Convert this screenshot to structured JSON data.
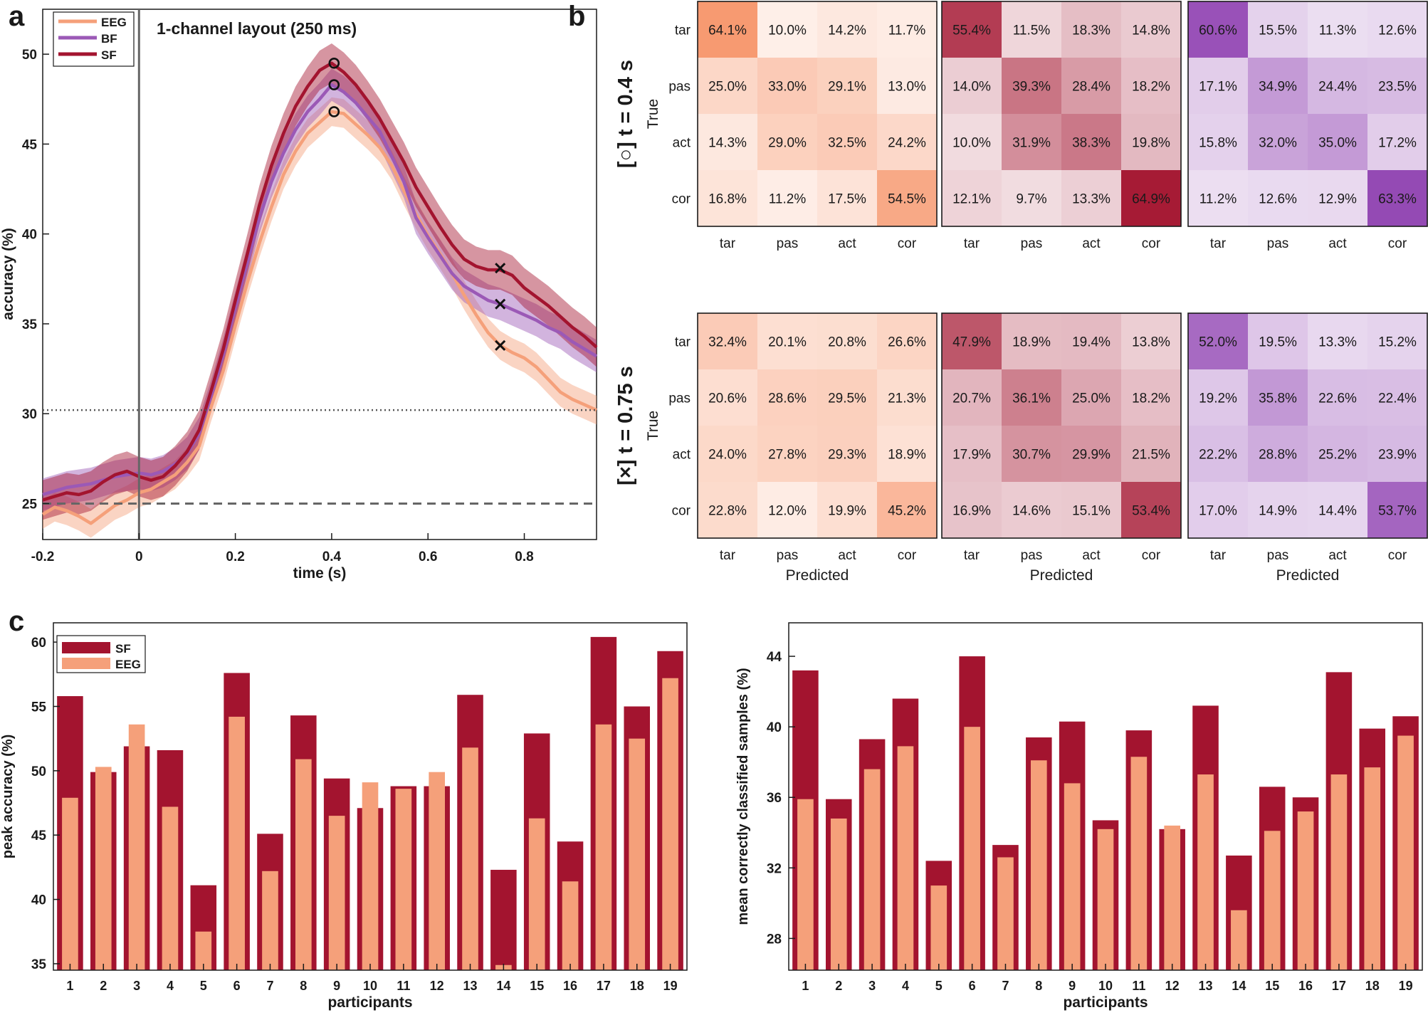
{
  "panel_labels": {
    "a": "a",
    "b": "b",
    "c": "c"
  },
  "colors": {
    "EEG": "#f5a07a",
    "BF": "#9b59b6",
    "SF": "#a3142f",
    "axis": "#1a1a1a"
  },
  "chart_data": [
    {
      "id": "a",
      "type": "line",
      "title": "1-channel layout (250 ms)",
      "xlabel": "time (s)",
      "ylabel": "accuracy (%)",
      "xlim": [
        -0.2,
        0.95
      ],
      "ylim": [
        23,
        52.5
      ],
      "xticks": [
        "-0.2",
        "0",
        "0.2",
        "0.4",
        "0.6",
        "0.8"
      ],
      "yticks": [
        "25",
        "30",
        "35",
        "40",
        "45",
        "50"
      ],
      "x": [
        -0.2,
        -0.175,
        -0.15,
        -0.125,
        -0.1,
        -0.075,
        -0.05,
        -0.025,
        0.0,
        0.025,
        0.05,
        0.075,
        0.1,
        0.125,
        0.15,
        0.175,
        0.2,
        0.225,
        0.25,
        0.275,
        0.3,
        0.325,
        0.35,
        0.375,
        0.4,
        0.425,
        0.45,
        0.475,
        0.5,
        0.525,
        0.55,
        0.575,
        0.6,
        0.625,
        0.65,
        0.675,
        0.7,
        0.725,
        0.75,
        0.775,
        0.8,
        0.825,
        0.85,
        0.875,
        0.9,
        0.925,
        0.95
      ],
      "series": [
        {
          "name": "EEG",
          "values": [
            24.4,
            24.8,
            24.6,
            24.3,
            23.9,
            24.4,
            24.9,
            25.2,
            25.6,
            25.8,
            26.2,
            26.6,
            27.3,
            28.2,
            30.4,
            32.4,
            34.9,
            37.3,
            39.5,
            41.5,
            43.3,
            44.6,
            45.6,
            46.2,
            46.8,
            46.7,
            46.1,
            45.5,
            44.8,
            43.8,
            42.4,
            41.1,
            39.9,
            38.9,
            37.8,
            36.6,
            35.5,
            34.5,
            33.8,
            33.4,
            33.1,
            32.6,
            31.9,
            31.2,
            30.8,
            30.5,
            30.2
          ],
          "band": 0.8
        },
        {
          "name": "BF",
          "values": [
            25.5,
            25.7,
            25.9,
            26.0,
            26.1,
            26.3,
            26.5,
            26.6,
            26.7,
            26.6,
            26.8,
            27.2,
            27.8,
            28.9,
            31.0,
            33.3,
            35.9,
            38.4,
            40.9,
            42.9,
            44.5,
            45.8,
            46.8,
            47.5,
            48.3,
            47.9,
            47.3,
            46.5,
            45.7,
            44.3,
            42.9,
            40.9,
            39.8,
            38.8,
            37.8,
            37.1,
            36.7,
            36.3,
            36.1,
            35.8,
            35.5,
            35.2,
            34.8,
            34.5,
            34.0,
            33.6,
            33.2
          ],
          "band": 0.9
        },
        {
          "name": "SF",
          "values": [
            25.2,
            25.4,
            25.6,
            25.5,
            25.7,
            26.2,
            26.6,
            26.8,
            26.5,
            26.3,
            26.5,
            27.1,
            27.9,
            29.1,
            31.3,
            33.6,
            36.3,
            38.9,
            41.6,
            43.8,
            45.6,
            47.1,
            48.2,
            49.1,
            49.5,
            49.0,
            48.3,
            47.4,
            46.4,
            45.2,
            44.0,
            42.6,
            41.5,
            40.4,
            39.4,
            38.6,
            38.2,
            38.0,
            38.0,
            37.7,
            37.0,
            36.5,
            36.0,
            35.4,
            34.8,
            34.3,
            33.7
          ],
          "band": 1.1
        }
      ],
      "markers": {
        "circle": {
          "x": 0.405,
          "values": [
            49.5,
            48.3,
            46.8
          ]
        },
        "cross": {
          "x": 0.75,
          "values": [
            38.1,
            36.1,
            33.8
          ]
        }
      },
      "reference_lines": {
        "dotted": 30.2,
        "dashed": 25
      },
      "legend": [
        "EEG",
        "BF",
        "SF"
      ],
      "legend_position": "top-left"
    },
    {
      "id": "b",
      "type": "heatmap",
      "row_labels": [
        "tar",
        "pas",
        "act",
        "cor"
      ],
      "col_labels": [
        "tar",
        "pas",
        "act",
        "cor"
      ],
      "ylabel": "True",
      "xlabel": "Predicted",
      "row_titles": [
        "[○] t = 0.4 s",
        "[×] t = 0.75 s"
      ],
      "matrices": [
        {
          "time": "0.4",
          "signal": "EEG",
          "values": [
            [
              "64.1%",
              "10.0%",
              "14.2%",
              "11.7%"
            ],
            [
              "25.0%",
              "33.0%",
              "29.1%",
              "13.0%"
            ],
            [
              "14.3%",
              "29.0%",
              "32.5%",
              "24.2%"
            ],
            [
              "16.8%",
              "11.2%",
              "17.5%",
              "54.5%"
            ]
          ]
        },
        {
          "time": "0.4",
          "signal": "SF",
          "values": [
            [
              "55.4%",
              "11.5%",
              "18.3%",
              "14.8%"
            ],
            [
              "14.0%",
              "39.3%",
              "28.4%",
              "18.2%"
            ],
            [
              "10.0%",
              "31.9%",
              "38.3%",
              "19.8%"
            ],
            [
              "12.1%",
              "9.7%",
              "13.3%",
              "64.9%"
            ]
          ]
        },
        {
          "time": "0.4",
          "signal": "BF",
          "values": [
            [
              "60.6%",
              "15.5%",
              "11.3%",
              "12.6%"
            ],
            [
              "17.1%",
              "34.9%",
              "24.4%",
              "23.5%"
            ],
            [
              "15.8%",
              "32.0%",
              "35.0%",
              "17.2%"
            ],
            [
              "11.2%",
              "12.6%",
              "12.9%",
              "63.3%"
            ]
          ]
        },
        {
          "time": "0.75",
          "signal": "EEG",
          "values": [
            [
              "32.4%",
              "20.1%",
              "20.8%",
              "26.6%"
            ],
            [
              "20.6%",
              "28.6%",
              "29.5%",
              "21.3%"
            ],
            [
              "24.0%",
              "27.8%",
              "29.3%",
              "18.9%"
            ],
            [
              "22.8%",
              "12.0%",
              "19.9%",
              "45.2%"
            ]
          ]
        },
        {
          "time": "0.75",
          "signal": "SF",
          "values": [
            [
              "47.9%",
              "18.9%",
              "19.4%",
              "13.8%"
            ],
            [
              "20.7%",
              "36.1%",
              "25.0%",
              "18.2%"
            ],
            [
              "17.9%",
              "30.7%",
              "29.9%",
              "21.5%"
            ],
            [
              "16.9%",
              "14.6%",
              "15.1%",
              "53.4%"
            ]
          ]
        },
        {
          "time": "0.75",
          "signal": "BF",
          "values": [
            [
              "52.0%",
              "19.5%",
              "13.3%",
              "15.2%"
            ],
            [
              "19.2%",
              "35.8%",
              "22.6%",
              "22.4%"
            ],
            [
              "22.2%",
              "28.8%",
              "25.2%",
              "23.9%"
            ],
            [
              "17.0%",
              "14.9%",
              "14.4%",
              "53.7%"
            ]
          ]
        }
      ]
    },
    {
      "id": "c-left",
      "type": "bar",
      "xlabel": "participants",
      "ylabel": "peak accuracy (%)",
      "ylim": [
        34.5,
        61.5
      ],
      "yticks": [
        "35",
        "40",
        "45",
        "50",
        "55",
        "60"
      ],
      "categories": [
        "1",
        "2",
        "3",
        "4",
        "5",
        "6",
        "7",
        "8",
        "9",
        "10",
        "11",
        "12",
        "13",
        "14",
        "15",
        "16",
        "17",
        "18",
        "19"
      ],
      "series": [
        {
          "name": "SF",
          "values": [
            55.8,
            49.9,
            51.9,
            51.6,
            41.1,
            57.6,
            45.1,
            54.3,
            49.4,
            47.1,
            48.8,
            48.8,
            55.9,
            42.3,
            52.9,
            44.5,
            60.4,
            55.0,
            59.3
          ]
        },
        {
          "name": "EEG",
          "values": [
            47.9,
            50.3,
            53.6,
            47.2,
            37.5,
            54.2,
            42.2,
            50.9,
            46.5,
            49.1,
            48.6,
            49.9,
            51.8,
            34.9,
            46.3,
            41.4,
            53.6,
            52.5,
            57.2
          ]
        }
      ],
      "legend": [
        "SF",
        "EEG"
      ],
      "legend_position": "top-left"
    },
    {
      "id": "c-right",
      "type": "bar",
      "xlabel": "participants",
      "ylabel": "mean correctly classified samples (%)",
      "ylim": [
        26.2,
        45.9
      ],
      "yticks": [
        "28",
        "32",
        "36",
        "40",
        "44"
      ],
      "categories": [
        "1",
        "2",
        "3",
        "4",
        "5",
        "6",
        "7",
        "8",
        "9",
        "10",
        "11",
        "12",
        "13",
        "14",
        "15",
        "16",
        "17",
        "18",
        "19"
      ],
      "series": [
        {
          "name": "SF",
          "values": [
            43.2,
            35.9,
            39.3,
            41.6,
            32.4,
            44.0,
            33.3,
            39.4,
            40.3,
            34.7,
            39.8,
            34.2,
            41.2,
            32.7,
            36.6,
            36.0,
            43.1,
            39.9,
            40.6
          ]
        },
        {
          "name": "EEG",
          "values": [
            35.9,
            34.8,
            37.6,
            38.9,
            31.0,
            40.0,
            32.6,
            38.1,
            36.8,
            34.2,
            38.3,
            34.4,
            37.3,
            29.6,
            34.1,
            35.2,
            37.3,
            37.7,
            39.5
          ]
        }
      ]
    }
  ]
}
